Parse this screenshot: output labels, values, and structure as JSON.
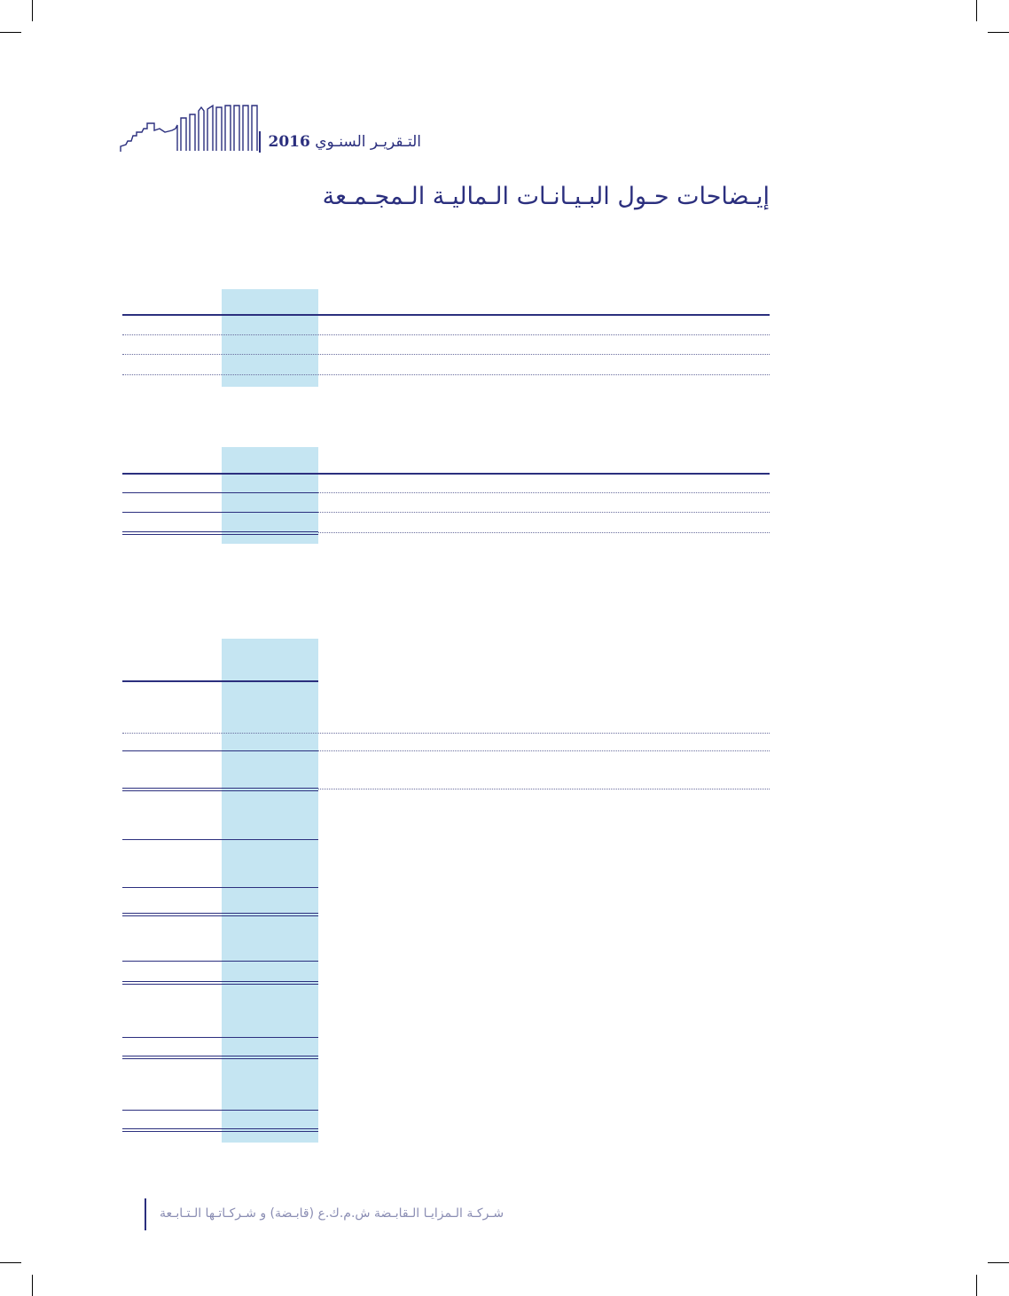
{
  "header": {
    "report_title": "التـقريـر السنـوي",
    "report_year": "2016"
  },
  "page": {
    "title": "إيـضاحات حـول البـيـانـات الـماليـة الـمجـمـعة"
  },
  "footer": {
    "company": "شـركـة الـمزايـا الـقابـضة ش.م.ك.ع (قابـضة) و شـركـاتـها الـتـابـعة"
  },
  "colors": {
    "brand": "#2b2f7e",
    "column_highlight": "#c5e5f2",
    "footer_text": "#8a8db3"
  },
  "icons": {
    "logo": "skyline-logo"
  }
}
